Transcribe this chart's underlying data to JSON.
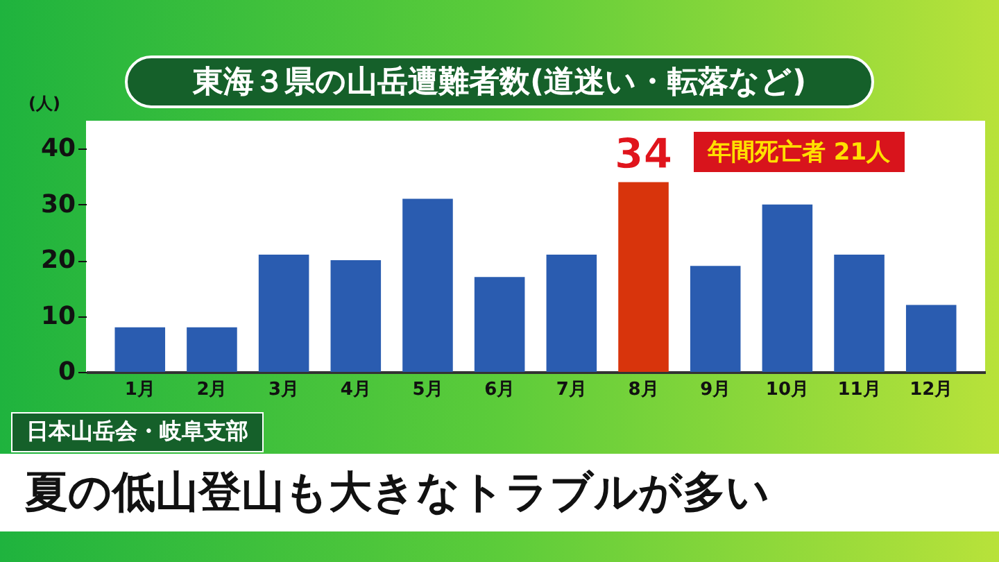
{
  "chart_data": {
    "type": "bar",
    "title": "東海３県の山岳遭難者数(道迷い・転落など)",
    "ylabel": "(人)",
    "categories": [
      "1月",
      "2月",
      "3月",
      "4月",
      "5月",
      "6月",
      "7月",
      "8月",
      "9月",
      "10月",
      "11月",
      "12月"
    ],
    "values": [
      8,
      8,
      21,
      20,
      31,
      17,
      21,
      34,
      19,
      30,
      21,
      12
    ],
    "colors": [
      "#2a5cb0",
      "#2a5cb0",
      "#2a5cb0",
      "#2a5cb0",
      "#2a5cb0",
      "#2a5cb0",
      "#2a5cb0",
      "#d8340c",
      "#2a5cb0",
      "#2a5cb0",
      "#2a5cb0",
      "#2a5cb0"
    ],
    "value_labels": [
      null,
      null,
      null,
      null,
      null,
      null,
      null,
      "34",
      null,
      null,
      null,
      null
    ],
    "ylim": [
      0,
      45
    ],
    "yticks": [
      0,
      10,
      20,
      30,
      40
    ],
    "grid": false,
    "annotations": [
      "年間死亡者 21人",
      "日本山岳会・岐阜支部",
      "夏の低山登山も大きなトラブルが多い"
    ]
  }
}
